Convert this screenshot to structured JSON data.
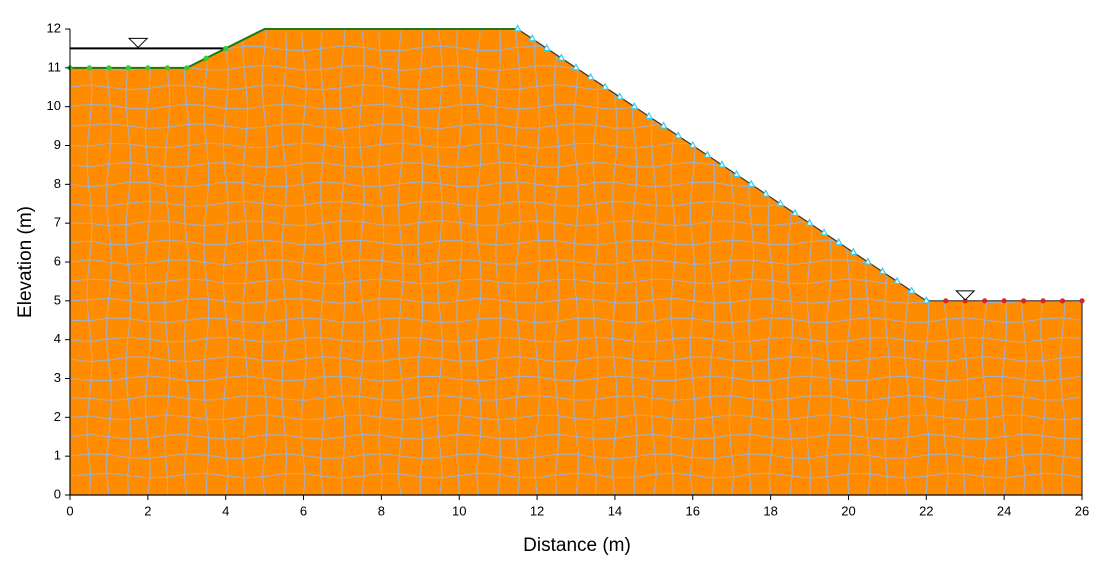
{
  "chart_data": {
    "type": "polygon",
    "xlabel": "Distance (m)",
    "ylabel": "Elevation (m)",
    "xlim": [
      0,
      26
    ],
    "ylim": [
      0,
      12
    ],
    "xticks": [
      0,
      2,
      4,
      6,
      8,
      10,
      12,
      14,
      16,
      18,
      20,
      22,
      24,
      26
    ],
    "yticks": [
      0,
      1,
      2,
      3,
      4,
      5,
      6,
      7,
      8,
      9,
      10,
      11,
      12
    ],
    "region": {
      "color": "#ff8c00",
      "mesh_color": "#9fb0cc",
      "x": [
        0,
        0,
        3,
        5,
        11.5,
        22,
        26,
        26
      ],
      "y": [
        0,
        11,
        11,
        12,
        12,
        5,
        5,
        0
      ]
    },
    "series": [
      {
        "color": "#000000",
        "marker": "none",
        "x": [
          0,
          4
        ],
        "y": [
          11.5,
          11.5
        ]
      },
      {
        "color": "#1a7a1a",
        "marker": "none",
        "x": [
          0,
          3,
          5,
          11.5
        ],
        "y": [
          11,
          11,
          12,
          12
        ]
      },
      {
        "color": "#33cc33",
        "marker": "circle",
        "x": [
          0,
          0.5,
          1,
          1.5,
          2,
          2.5,
          3,
          3.5,
          4
        ],
        "y": [
          11,
          11,
          11,
          11,
          11,
          11,
          11,
          11.25,
          11.5
        ]
      },
      {
        "color": "#dd2222",
        "marker": "circle",
        "x": [
          22,
          22.5,
          23,
          23.5,
          24,
          24.5,
          25,
          25.5,
          26
        ],
        "y": [
          5,
          5,
          5,
          5,
          5,
          5,
          5,
          5,
          5
        ]
      },
      {
        "color": "#33ccee",
        "marker": "triangle",
        "x": [
          11.5,
          11.875,
          12.25,
          12.625,
          13,
          13.375,
          13.75,
          14.125,
          14.5,
          14.875,
          15.25,
          15.625,
          16,
          16.375,
          16.75,
          17.125,
          17.5,
          17.875,
          18.25,
          18.625,
          19,
          19.375,
          19.75,
          20.125,
          20.5,
          20.875,
          21.25,
          21.625,
          22
        ],
        "y": [
          12,
          11.75,
          11.5,
          11.25,
          11,
          10.75,
          10.5,
          10.25,
          10,
          9.75,
          9.5,
          9.25,
          9,
          8.75,
          8.5,
          8.25,
          8,
          7.75,
          7.5,
          7.25,
          7,
          6.75,
          6.5,
          6.25,
          6,
          5.75,
          5.5,
          5.25,
          5
        ]
      },
      {
        "color": "#000000",
        "marker": "inverted-triangle",
        "x": [
          1.75,
          23
        ],
        "y": [
          11.5,
          5
        ]
      }
    ]
  }
}
